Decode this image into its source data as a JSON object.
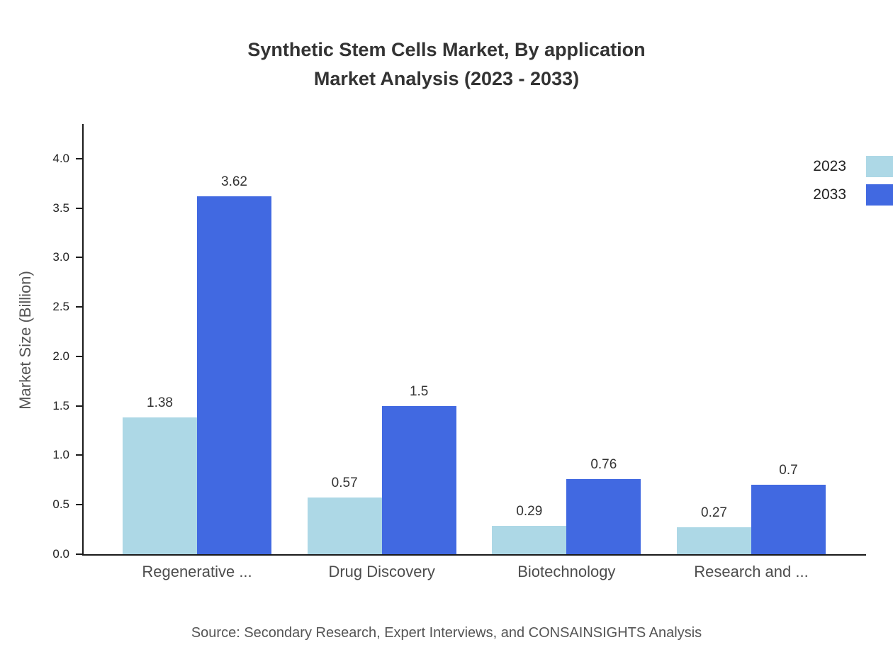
{
  "title": {
    "line1": "Synthetic Stem Cells Market, By application",
    "line2": "Market Analysis (2023 - 2033)"
  },
  "source": "Source: Secondary Research, Expert Interviews, and CONSAINSIGHTS Analysis",
  "chart_data": {
    "type": "bar",
    "title": "Synthetic Stem Cells Market, By application Market Analysis (2023 - 2033)",
    "categories": [
      "Regenerative ...",
      "Drug Discovery",
      "Biotechnology",
      "Research and ..."
    ],
    "series": [
      {
        "name": "2023",
        "color": "#ADD8E6",
        "values": [
          1.38,
          0.57,
          0.29,
          0.27
        ],
        "labels": [
          "1.38",
          "0.57",
          "0.29",
          "0.27"
        ]
      },
      {
        "name": "2033",
        "color": "#4169E1",
        "values": [
          3.62,
          1.5,
          0.76,
          0.7
        ],
        "labels": [
          "3.62",
          "1.5",
          "0.76",
          "0.7"
        ]
      }
    ],
    "xlabel": "",
    "ylabel": "Market Size (Billion)",
    "ylim": [
      0,
      4.35
    ],
    "yticks": [
      0.0,
      0.5,
      1.0,
      1.5,
      2.0,
      2.5,
      3.0,
      3.5,
      4.0
    ],
    "grid": false,
    "legend_position": "top-right"
  }
}
